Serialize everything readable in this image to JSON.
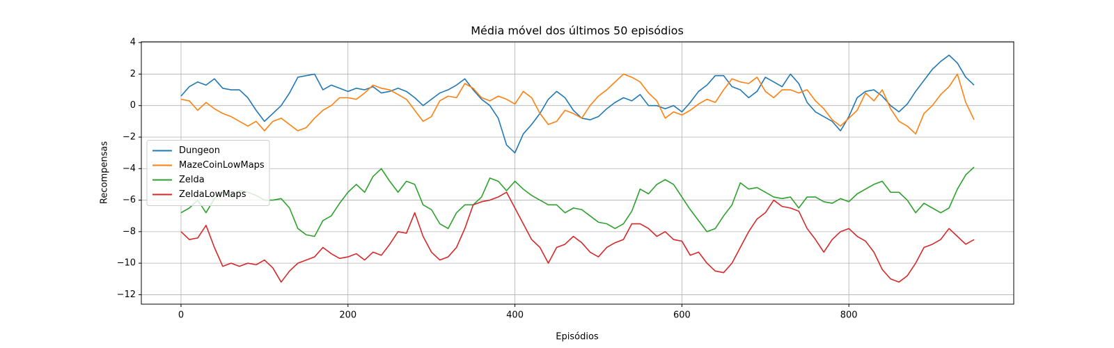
{
  "chart_data": {
    "type": "line",
    "title": "Média móvel dos últimos 50 episódios",
    "x_label": "Episódios",
    "y_label": "Recompensas",
    "x": [
      0,
      10,
      20,
      30,
      40,
      50,
      60,
      70,
      80,
      90,
      100,
      110,
      120,
      130,
      140,
      150,
      160,
      170,
      180,
      190,
      200,
      210,
      220,
      230,
      240,
      250,
      260,
      270,
      280,
      290,
      300,
      310,
      320,
      330,
      340,
      350,
      360,
      370,
      380,
      390,
      400,
      410,
      420,
      430,
      440,
      450,
      460,
      470,
      480,
      490,
      500,
      510,
      520,
      530,
      540,
      550,
      560,
      570,
      580,
      590,
      600,
      610,
      620,
      630,
      640,
      650,
      660,
      670,
      680,
      690,
      700,
      710,
      720,
      730,
      740,
      750,
      760,
      770,
      780,
      790,
      800,
      810,
      820,
      830,
      840,
      850,
      860,
      870,
      880,
      890,
      900,
      910,
      920,
      930,
      940,
      950
    ],
    "series": [
      {
        "name": "Dungeon",
        "color": "#1f77b4",
        "values": [
          0.6,
          1.2,
          1.5,
          1.3,
          1.7,
          1.1,
          1.0,
          1.0,
          0.5,
          -0.3,
          -1.0,
          -0.5,
          0.0,
          0.8,
          1.8,
          1.9,
          2.0,
          1.0,
          1.3,
          1.1,
          0.9,
          1.1,
          1.0,
          1.2,
          0.8,
          0.9,
          1.1,
          0.9,
          0.5,
          0.0,
          0.4,
          0.8,
          1.0,
          1.3,
          1.7,
          1.0,
          0.4,
          0.0,
          -0.8,
          -2.5,
          -3.0,
          -1.8,
          -1.2,
          -0.5,
          0.4,
          0.9,
          0.5,
          -0.3,
          -0.8,
          -0.9,
          -0.7,
          -0.2,
          0.2,
          0.5,
          0.3,
          0.7,
          0.0,
          0.0,
          -0.2,
          0.0,
          -0.4,
          0.2,
          0.9,
          1.3,
          1.9,
          1.9,
          1.2,
          1.0,
          0.5,
          0.9,
          1.8,
          1.5,
          1.2,
          2.0,
          1.4,
          0.2,
          -0.4,
          -0.7,
          -1.0,
          -1.6,
          -0.7,
          0.5,
          0.9,
          1.0,
          0.6,
          0.0,
          -0.4,
          0.1,
          0.9,
          1.6,
          2.3,
          2.8,
          3.2,
          2.7,
          1.8,
          1.3
        ]
      },
      {
        "name": "MazeCoinLowMaps",
        "color": "#ff7f0e",
        "values": [
          0.4,
          0.3,
          -0.3,
          0.2,
          -0.2,
          -0.5,
          -0.7,
          -1.0,
          -1.3,
          -1.0,
          -1.6,
          -1.0,
          -0.8,
          -1.2,
          -1.6,
          -1.4,
          -0.8,
          -0.3,
          0.0,
          0.5,
          0.5,
          0.4,
          0.8,
          1.3,
          1.1,
          1.0,
          0.7,
          0.4,
          -0.3,
          -1.0,
          -0.7,
          0.3,
          0.6,
          0.5,
          1.4,
          1.1,
          0.5,
          0.3,
          0.6,
          0.4,
          0.1,
          0.9,
          0.5,
          -0.5,
          -1.2,
          -1.0,
          -0.3,
          -0.5,
          -0.8,
          0.0,
          0.6,
          1.0,
          1.5,
          2.0,
          1.8,
          1.5,
          0.8,
          0.3,
          -0.8,
          -0.4,
          -0.6,
          -0.3,
          0.1,
          0.4,
          0.2,
          1.0,
          1.7,
          1.5,
          1.4,
          1.8,
          0.9,
          0.5,
          1.0,
          1.0,
          0.8,
          1.0,
          0.3,
          -0.2,
          -0.9,
          -1.3,
          -0.8,
          -0.3,
          0.8,
          0.3,
          1.0,
          -0.2,
          -1.0,
          -1.3,
          -1.8,
          -0.5,
          0.0,
          0.7,
          1.2,
          2.0,
          0.2,
          -0.9
        ]
      },
      {
        "name": "Zelda",
        "color": "#2ca02c",
        "values": [
          -6.8,
          -6.5,
          -6.0,
          -6.8,
          -5.9,
          -5.5,
          -5.8,
          -5.4,
          -5.5,
          -5.7,
          -6.0,
          -6.0,
          -5.9,
          -6.5,
          -7.8,
          -8.2,
          -8.3,
          -7.3,
          -7.0,
          -6.2,
          -5.5,
          -5.0,
          -5.5,
          -4.5,
          -4.0,
          -4.8,
          -5.5,
          -4.8,
          -5.0,
          -6.3,
          -6.6,
          -7.5,
          -7.8,
          -6.8,
          -6.3,
          -6.3,
          -5.8,
          -4.6,
          -4.8,
          -5.4,
          -4.8,
          -5.3,
          -5.7,
          -6.0,
          -6.3,
          -6.3,
          -6.8,
          -6.5,
          -6.6,
          -7.0,
          -7.4,
          -7.5,
          -7.8,
          -7.5,
          -6.7,
          -5.3,
          -5.6,
          -5.0,
          -4.7,
          -5.0,
          -5.8,
          -6.6,
          -7.3,
          -8.0,
          -7.8,
          -7.0,
          -6.3,
          -4.9,
          -5.3,
          -5.2,
          -5.5,
          -5.8,
          -5.9,
          -5.8,
          -6.5,
          -5.8,
          -5.8,
          -6.1,
          -6.2,
          -5.9,
          -6.1,
          -5.6,
          -5.3,
          -5.0,
          -4.8,
          -5.5,
          -5.5,
          -6.0,
          -6.8,
          -6.2,
          -6.5,
          -6.8,
          -6.5,
          -5.3,
          -4.4,
          -3.9
        ]
      },
      {
        "name": "ZeldaLowMaps",
        "color": "#d62728",
        "values": [
          -8.0,
          -8.5,
          -8.4,
          -7.6,
          -9.0,
          -10.2,
          -10.0,
          -10.2,
          -10.0,
          -10.1,
          -9.8,
          -10.3,
          -11.2,
          -10.5,
          -10.0,
          -9.8,
          -9.6,
          -9.0,
          -9.4,
          -9.7,
          -9.6,
          -9.4,
          -9.8,
          -9.3,
          -9.5,
          -8.8,
          -8.0,
          -8.1,
          -6.8,
          -8.3,
          -9.3,
          -9.8,
          -9.6,
          -9.0,
          -7.8,
          -6.3,
          -6.1,
          -6.0,
          -5.8,
          -5.5,
          -6.5,
          -7.5,
          -8.5,
          -9.0,
          -10.0,
          -9.0,
          -8.8,
          -8.3,
          -8.7,
          -9.3,
          -9.6,
          -9.0,
          -8.7,
          -8.5,
          -7.5,
          -7.5,
          -7.8,
          -8.3,
          -8.0,
          -8.5,
          -8.6,
          -9.5,
          -9.3,
          -10.0,
          -10.5,
          -10.6,
          -10.0,
          -9.0,
          -8.0,
          -7.2,
          -6.8,
          -6.0,
          -6.4,
          -6.5,
          -6.7,
          -7.8,
          -8.5,
          -9.3,
          -8.5,
          -8.0,
          -7.8,
          -8.3,
          -8.6,
          -9.3,
          -10.4,
          -11.0,
          -11.2,
          -10.8,
          -10.0,
          -9.0,
          -8.8,
          -8.5,
          -7.8,
          -8.3,
          -8.8,
          -8.5
        ]
      }
    ],
    "xlim": [
      -47.5,
      997.5
    ],
    "ylim": [
      -12.6,
      4.05
    ],
    "xticks": [
      0,
      200,
      400,
      600,
      800
    ],
    "yticks": [
      {
        "value": -12,
        "label": "−12"
      },
      {
        "value": -10,
        "label": "−10"
      },
      {
        "value": -8,
        "label": "−8"
      },
      {
        "value": -6,
        "label": "−6"
      },
      {
        "value": -4,
        "label": "−4"
      },
      {
        "value": -2,
        "label": "−2"
      },
      0,
      2,
      4
    ],
    "grid": true,
    "legend": "center left"
  }
}
